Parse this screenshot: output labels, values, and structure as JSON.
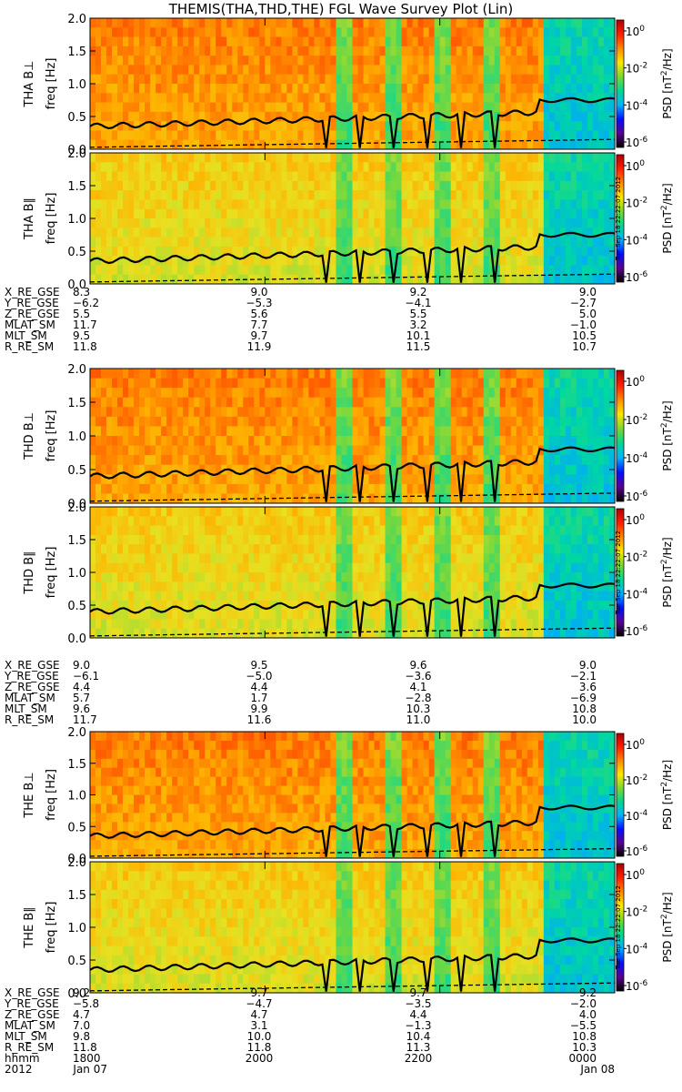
{
  "title": "THEMIS(THA,THD,THE) FGL Wave Survey Plot (Lin)",
  "colors": {
    "background": "#ffffff",
    "text": "#000000",
    "line": "#000000"
  },
  "chart_data": {
    "type": "heatmap",
    "x_tick_values_min": [
      1800,
      2000,
      2200,
      2400
    ],
    "ylim": [
      0,
      2.0
    ],
    "y_ticks": [
      "0.0",
      "0.5",
      "1.0",
      "1.5",
      "2.0"
    ],
    "ylabel_freq": "freq [Hz]",
    "colorbar": {
      "label_prefix": "PSD [nT",
      "label_sup": "2",
      "label_suffix": "/Hz]",
      "ticks": [
        {
          "base": "10",
          "exp": "0"
        },
        {
          "base": "10",
          "exp": "-2"
        },
        {
          "base": "10",
          "exp": "-4"
        },
        {
          "base": "10",
          "exp": "-6"
        }
      ],
      "colors": [
        "#000000",
        "#5a0090",
        "#0010ff",
        "#00b4ff",
        "#00d890",
        "#7ad830",
        "#ffe800",
        "#ff8a00",
        "#ff1e00",
        "#b00000"
      ]
    },
    "timestamp_stamp": "Tue Sep 18 22:22:07 2012",
    "probes": [
      {
        "panels": [
          {
            "label": "THA B⊥",
            "line_level": 0.45,
            "blue_tail_line": 0.75
          },
          {
            "label": "THA B∥",
            "line_level": 0.45,
            "blue_tail_line": 0.75
          }
        ],
        "ephemeris": {
          "rows": [
            {
              "name": "X_RE_GSE",
              "values": [
                "8.3",
                "9.0",
                "9.2",
                "9.0"
              ]
            },
            {
              "name": "Y_RE_GSE",
              "values": [
                "−6.2",
                "−5.3",
                "−4.1",
                "−2.7"
              ]
            },
            {
              "name": "Z_RE_GSE",
              "values": [
                "5.5",
                "5.6",
                "5.5",
                "5.0"
              ]
            },
            {
              "name": "MLAT_SM",
              "values": [
                "11.7",
                "7.7",
                "3.2",
                "−1.0"
              ]
            },
            {
              "name": "MLT_SM",
              "values": [
                "9.5",
                "9.7",
                "10.1",
                "10.5"
              ]
            },
            {
              "name": "R_RE_SM",
              "values": [
                "11.8",
                "11.9",
                "11.5",
                "10.7"
              ]
            }
          ]
        }
      },
      {
        "panels": [
          {
            "label": "THD B⊥",
            "line_level": 0.5,
            "blue_tail_line": 0.8
          },
          {
            "label": "THD B∥",
            "line_level": 0.5,
            "blue_tail_line": 0.8
          }
        ],
        "ephemeris": {
          "rows": [
            {
              "name": "X_RE_GSE",
              "values": [
                "9.0",
                "9.5",
                "9.6",
                "9.0"
              ]
            },
            {
              "name": "Y_RE_GSE",
              "values": [
                "−6.1",
                "−5.0",
                "−3.6",
                "−2.1"
              ]
            },
            {
              "name": "Z_RE_GSE",
              "values": [
                "4.4",
                "4.4",
                "4.1",
                "3.6"
              ]
            },
            {
              "name": "MLAT_SM",
              "values": [
                "5.7",
                "1.7",
                "−2.8",
                "−6.9"
              ]
            },
            {
              "name": "MLT_SM",
              "values": [
                "9.6",
                "9.9",
                "10.3",
                "10.8"
              ]
            },
            {
              "name": "R_RE_SM",
              "values": [
                "11.7",
                "11.6",
                "11.0",
                "10.0"
              ]
            }
          ]
        }
      },
      {
        "panels": [
          {
            "label": "THE B⊥",
            "line_level": 0.45,
            "blue_tail_line": 0.8
          },
          {
            "label": "THE B∥",
            "line_level": 0.45,
            "blue_tail_line": 0.8
          }
        ],
        "ephemeris": {
          "rows": [
            {
              "name": "X_RE_GSE",
              "values": [
                "9.2",
                "9.7",
                "9.7",
                "9.2"
              ]
            },
            {
              "name": "Y_RE_GSE",
              "values": [
                "−5.8",
                "−4.7",
                "−3.5",
                "−2.0"
              ]
            },
            {
              "name": "Z_RE_GSE",
              "values": [
                "4.7",
                "4.7",
                "4.4",
                "4.0"
              ]
            },
            {
              "name": "MLAT_SM",
              "values": [
                "7.0",
                "3.1",
                "−1.3",
                "−5.5"
              ]
            },
            {
              "name": "MLT_SM",
              "values": [
                "9.8",
                "10.0",
                "10.4",
                "10.8"
              ]
            },
            {
              "name": "R_RE_SM",
              "values": [
                "11.8",
                "11.8",
                "11.3",
                "10.3"
              ]
            },
            {
              "name": "hhmm",
              "values": [
                "1800",
                "2000",
                "2200",
                "0000"
              ]
            }
          ],
          "date_row": [
            "2012",
            "Jan 07",
            "Jan 08"
          ]
        }
      }
    ]
  }
}
